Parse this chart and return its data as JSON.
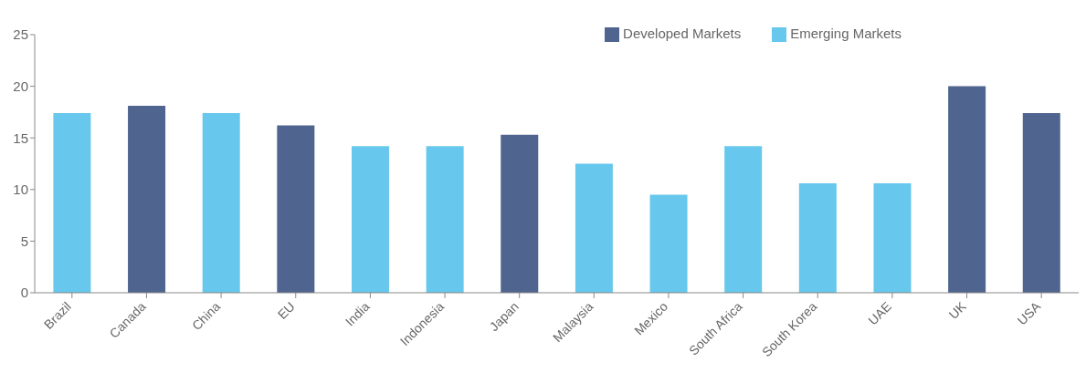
{
  "chart_data": {
    "type": "bar",
    "stacked": true,
    "categories": [
      "Brazil",
      "Canada",
      "China",
      "EU",
      "India",
      "Indonesia",
      "Japan",
      "Malaysia",
      "Mexico",
      "South Africa",
      "South Korea",
      "UAE",
      "UK",
      "USA"
    ],
    "series": [
      {
        "name": "Emerging Markets",
        "color": "#67c7ec",
        "values": [
          17.4,
          null,
          17.4,
          null,
          14.2,
          14.2,
          null,
          12.5,
          9.5,
          14.2,
          10.6,
          10.6,
          null,
          null
        ]
      },
      {
        "name": "Developed Markets",
        "color": "#4f648e",
        "values": [
          null,
          18.1,
          null,
          16.2,
          null,
          null,
          15.3,
          null,
          null,
          null,
          null,
          null,
          20.0,
          17.4
        ]
      }
    ],
    "ylim": [
      0,
      25
    ],
    "yticks": [
      0,
      5,
      10,
      15,
      20,
      25
    ],
    "grid": false,
    "legend": "top right"
  }
}
